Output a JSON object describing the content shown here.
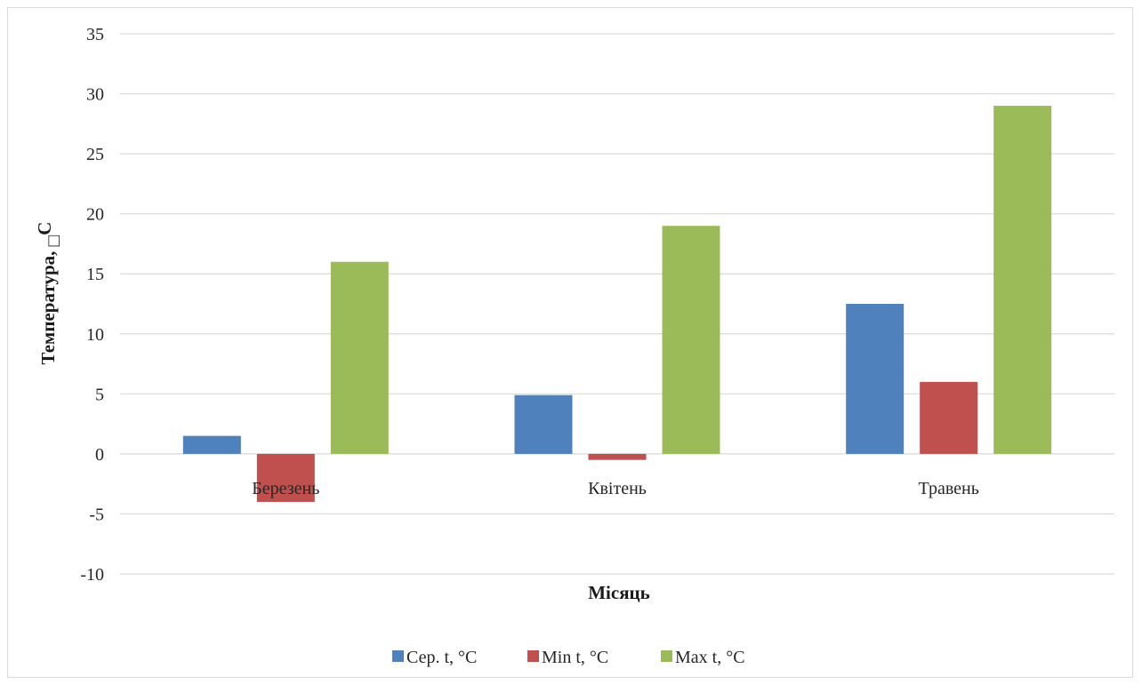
{
  "chart_data": {
    "type": "bar",
    "categories": [
      "Березень",
      "Квітень",
      "Травень"
    ],
    "series": [
      {
        "name": "Сер. t, °C",
        "color": "#4f81bd",
        "values": [
          1.5,
          4.9,
          12.5
        ]
      },
      {
        "name": "Min t, °C",
        "color": "#c0504d",
        "values": [
          -4.0,
          -0.5,
          6.0
        ]
      },
      {
        "name": "Max t, °C",
        "color": "#9bbb59",
        "values": [
          16.0,
          19.0,
          29.0
        ]
      }
    ],
    "xlabel": "Місяць",
    "ylabel": "Температура, ",
    "ylabel_symbol": "□",
    "ylabel_unit": "C",
    "ylim": [
      -10,
      35
    ],
    "yticks": [
      "35",
      "30",
      "25",
      "20",
      "15",
      "10",
      "5",
      "0",
      "-5",
      "-10"
    ],
    "grid": true,
    "legend_position": "bottom"
  }
}
